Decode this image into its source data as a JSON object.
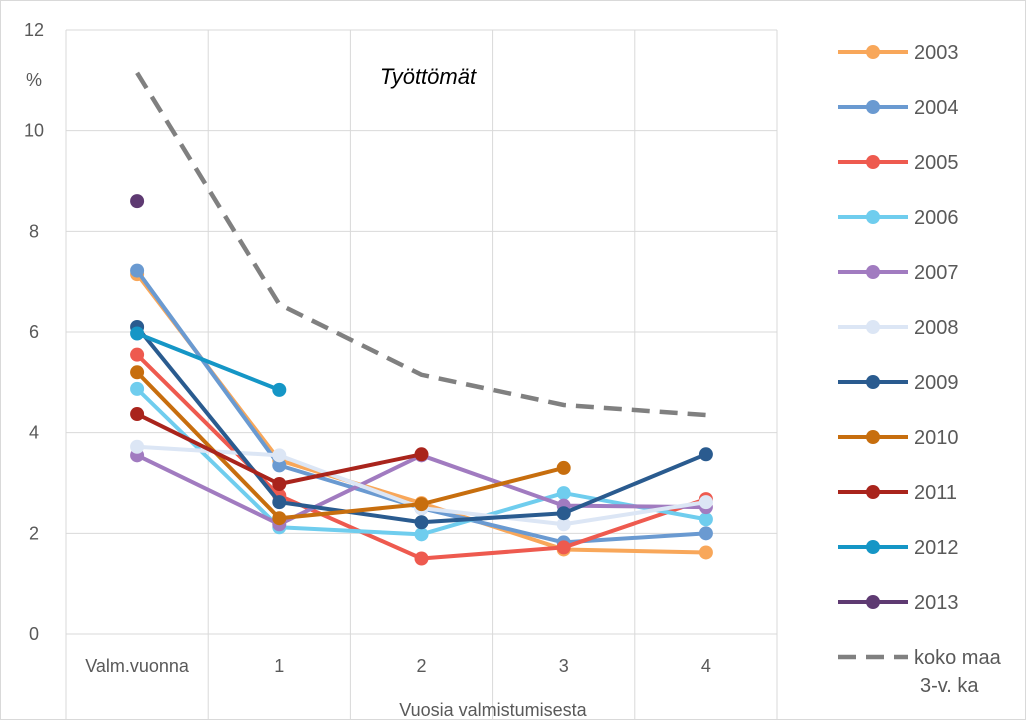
{
  "chart_data": {
    "type": "line",
    "title": "Työttömät",
    "ylabel": "%",
    "xlabel": "Vuosia valmistumisesta",
    "categories": [
      "Valm.vuonna",
      "1",
      "2",
      "3",
      "4"
    ],
    "ylim": [
      0,
      12
    ],
    "yticks": [
      0,
      2,
      4,
      6,
      8,
      10,
      12
    ],
    "grid": true,
    "legend_position": "right",
    "series": [
      {
        "name": "2003",
        "color": "#F8A75A",
        "values": [
          7.15,
          3.45,
          2.6,
          1.68,
          1.62
        ]
      },
      {
        "name": "2004",
        "color": "#6A9AD1",
        "values": [
          7.22,
          3.35,
          2.5,
          1.82,
          2.0
        ]
      },
      {
        "name": "2005",
        "color": "#EE5A4F",
        "values": [
          5.55,
          2.75,
          1.5,
          1.72,
          2.68
        ]
      },
      {
        "name": "2006",
        "color": "#6FCDEE",
        "values": [
          4.87,
          2.12,
          1.98,
          2.8,
          2.28
        ]
      },
      {
        "name": "2007",
        "color": "#A17BC0",
        "values": [
          3.55,
          2.18,
          3.55,
          2.55,
          2.52
        ]
      },
      {
        "name": "2008",
        "color": "#DCE6F5",
        "values": [
          3.72,
          3.55,
          2.5,
          2.18,
          2.62
        ]
      },
      {
        "name": "2009",
        "color": "#2A5B8F",
        "values": [
          6.1,
          2.62,
          2.22,
          2.4,
          3.57
        ]
      },
      {
        "name": "2010",
        "color": "#C76E0E",
        "values": [
          5.2,
          2.3,
          2.58,
          3.3,
          null
        ]
      },
      {
        "name": "2011",
        "color": "#A9241C",
        "values": [
          4.37,
          2.98,
          3.57,
          null,
          null
        ]
      },
      {
        "name": "2012",
        "color": "#1596C6",
        "values": [
          5.97,
          4.85,
          null,
          null,
          null
        ]
      },
      {
        "name": "2013",
        "color": "#5E3A72",
        "values": [
          8.6,
          null,
          null,
          null,
          null
        ]
      }
    ],
    "reference": {
      "name": "koko maa 3-v. ka",
      "name_lines": [
        "koko maa",
        "3-v. ka"
      ],
      "color": "#808080",
      "values": [
        11.15,
        6.55,
        5.15,
        4.55,
        4.35
      ]
    }
  }
}
